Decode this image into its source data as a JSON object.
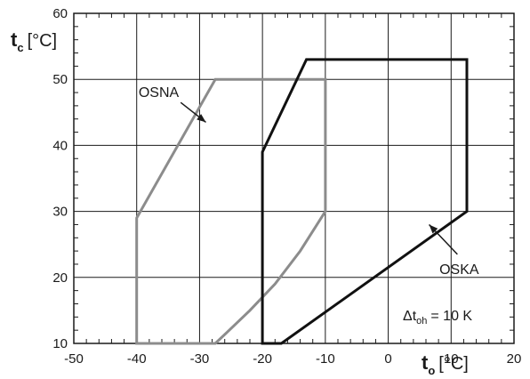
{
  "chart_data": {
    "type": "line",
    "title": "",
    "xlabel": {
      "symbol": "t",
      "subscript": "o",
      "unit": "[°C]"
    },
    "ylabel": {
      "symbol": "t",
      "subscript": "c",
      "unit": "[°C]"
    },
    "xlim": [
      -50,
      20
    ],
    "ylim": [
      10,
      60
    ],
    "x_ticks": [
      -50,
      -40,
      -30,
      -20,
      -10,
      0,
      10,
      20
    ],
    "y_ticks": [
      10,
      20,
      30,
      40,
      50,
      60
    ],
    "x_tick_labels": [
      "-50",
      "-40",
      "-30",
      "-20",
      "-10",
      "0",
      "10",
      "20"
    ],
    "y_tick_labels": [
      "10",
      "20",
      "30",
      "40",
      "50",
      "60"
    ],
    "grid": true,
    "colors": {
      "OSNA": "#8c8c8c",
      "OSKA": "#111111",
      "grid": "#1a1a1a"
    },
    "series": [
      {
        "name": "OSNA",
        "closed": true,
        "points": [
          [
            -40,
            10
          ],
          [
            -40,
            29
          ],
          [
            -27.5,
            50
          ],
          [
            -10,
            50
          ],
          [
            -10,
            30
          ],
          [
            -14,
            24
          ],
          [
            -18,
            19
          ],
          [
            -22,
            15
          ],
          [
            -25.5,
            11.8
          ],
          [
            -27.5,
            10
          ]
        ]
      },
      {
        "name": "OSKA",
        "closed": true,
        "points": [
          [
            -20,
            10
          ],
          [
            -20,
            39
          ],
          [
            -13,
            53
          ],
          [
            12.5,
            53
          ],
          [
            12.5,
            30
          ],
          [
            -17,
            10
          ]
        ]
      }
    ],
    "annotations": [
      {
        "text": "OSNA",
        "arrow_from": [
          -33,
          46.5
        ],
        "arrow_to": [
          -29,
          43.5
        ]
      },
      {
        "text": "OSKA",
        "arrow_from": [
          11,
          23.5
        ],
        "arrow_to": [
          6.5,
          28
        ]
      }
    ],
    "condition": {
      "symbol": "Δt",
      "subscript": "oh",
      "value": "= 10 K"
    }
  }
}
